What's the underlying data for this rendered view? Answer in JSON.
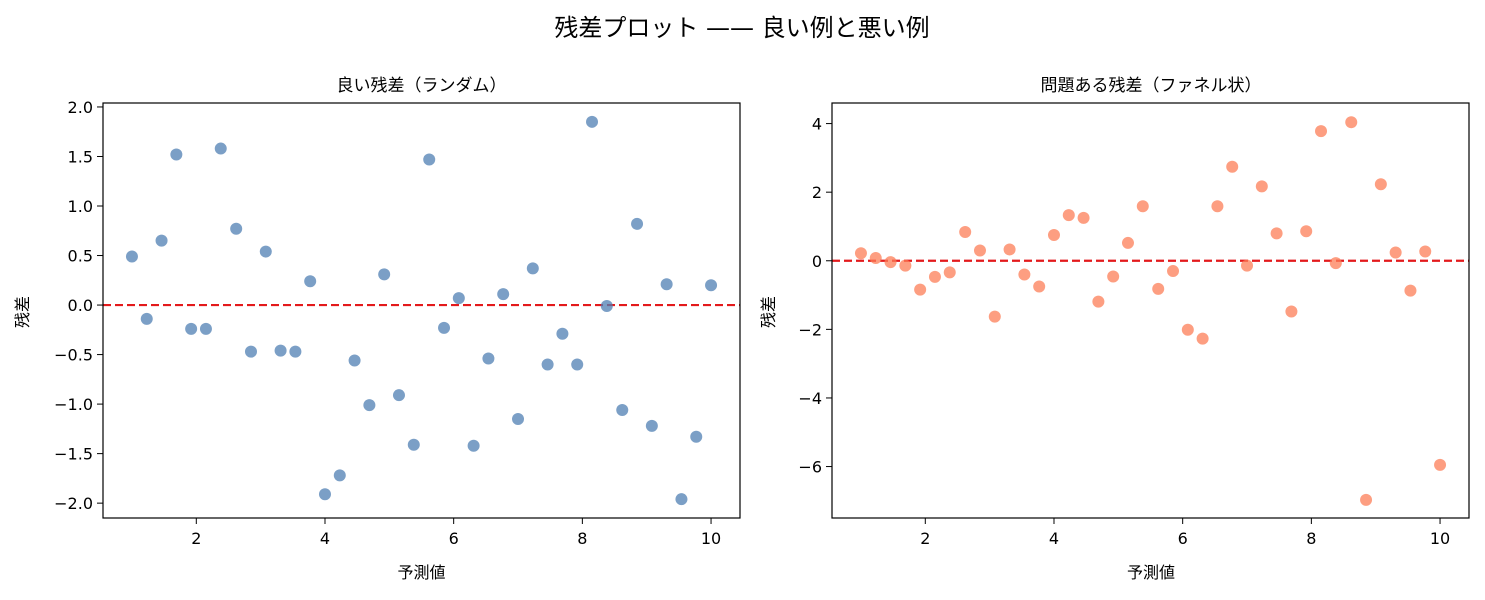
{
  "figure": {
    "suptitle": "残差プロット —— 良い例と悪い例"
  },
  "chart_data": [
    {
      "type": "scatter",
      "title": "良い残差（ランダム）",
      "xlabel": "予測値",
      "ylabel": "残差",
      "xlim": [
        0.55,
        10.45
      ],
      "ylim": [
        -2.15,
        2.04
      ],
      "xticks": [
        2,
        4,
        6,
        8,
        10
      ],
      "yticks": [
        -2.0,
        -1.5,
        -1.0,
        -0.5,
        0.0,
        0.5,
        1.0,
        1.5,
        2.0
      ],
      "ytick_labels": [
        "−2.0",
        "−1.5",
        "−1.0",
        "−0.5",
        "0.0",
        "0.5",
        "1.0",
        "1.5",
        "2.0"
      ],
      "xtick_labels": [
        "2",
        "4",
        "6",
        "8",
        "10"
      ],
      "reference_line": {
        "y": 0,
        "style": "dashed",
        "color": "#e31a1c"
      },
      "grid": false,
      "marker_color": "#4f7fb3",
      "marker_alpha": 0.75,
      "points": [
        {
          "x": 1.0,
          "y": 0.49
        },
        {
          "x": 1.23,
          "y": -0.14
        },
        {
          "x": 1.46,
          "y": 0.65
        },
        {
          "x": 1.69,
          "y": 1.52
        },
        {
          "x": 1.92,
          "y": -0.24
        },
        {
          "x": 2.15,
          "y": -0.24
        },
        {
          "x": 2.38,
          "y": 1.58
        },
        {
          "x": 2.62,
          "y": 0.77
        },
        {
          "x": 2.85,
          "y": -0.47
        },
        {
          "x": 3.08,
          "y": 0.54
        },
        {
          "x": 3.31,
          "y": -0.46
        },
        {
          "x": 3.54,
          "y": -0.47
        },
        {
          "x": 3.77,
          "y": 0.24
        },
        {
          "x": 4.0,
          "y": -1.91
        },
        {
          "x": 4.23,
          "y": -1.72
        },
        {
          "x": 4.46,
          "y": -0.56
        },
        {
          "x": 4.69,
          "y": -1.01
        },
        {
          "x": 4.92,
          "y": 0.31
        },
        {
          "x": 5.15,
          "y": -0.91
        },
        {
          "x": 5.38,
          "y": -1.41
        },
        {
          "x": 5.62,
          "y": 1.47
        },
        {
          "x": 5.85,
          "y": -0.23
        },
        {
          "x": 6.08,
          "y": 0.07
        },
        {
          "x": 6.31,
          "y": -1.42
        },
        {
          "x": 6.54,
          "y": -0.54
        },
        {
          "x": 6.77,
          "y": 0.11
        },
        {
          "x": 7.0,
          "y": -1.15
        },
        {
          "x": 7.23,
          "y": 0.37
        },
        {
          "x": 7.46,
          "y": -0.6
        },
        {
          "x": 7.69,
          "y": -0.29
        },
        {
          "x": 7.92,
          "y": -0.6
        },
        {
          "x": 8.15,
          "y": 1.85
        },
        {
          "x": 8.38,
          "y": -0.01
        },
        {
          "x": 8.62,
          "y": -1.06
        },
        {
          "x": 8.85,
          "y": 0.82
        },
        {
          "x": 9.08,
          "y": -1.22
        },
        {
          "x": 9.31,
          "y": 0.21
        },
        {
          "x": 9.54,
          "y": -1.96
        },
        {
          "x": 9.77,
          "y": -1.33
        },
        {
          "x": 10.0,
          "y": 0.2
        }
      ]
    },
    {
      "type": "scatter",
      "title": "問題ある残差（ファネル状）",
      "xlabel": "予測値",
      "ylabel": "残差",
      "xlim": [
        0.55,
        10.45
      ],
      "ylim": [
        -7.5,
        4.6
      ],
      "xticks": [
        2,
        4,
        6,
        8,
        10
      ],
      "yticks": [
        -6,
        -4,
        -2,
        0,
        2,
        4
      ],
      "ytick_labels": [
        "−6",
        "−4",
        "−2",
        "0",
        "2",
        "4"
      ],
      "xtick_labels": [
        "2",
        "4",
        "6",
        "8",
        "10"
      ],
      "reference_line": {
        "y": 0,
        "style": "dashed",
        "color": "#e31a1c"
      },
      "grid": false,
      "marker_color": "#fc7e57",
      "marker_alpha": 0.75,
      "points": [
        {
          "x": 1.0,
          "y": 0.22
        },
        {
          "x": 1.23,
          "y": 0.08
        },
        {
          "x": 1.46,
          "y": -0.04
        },
        {
          "x": 1.69,
          "y": -0.14
        },
        {
          "x": 1.92,
          "y": -0.84
        },
        {
          "x": 2.15,
          "y": -0.47
        },
        {
          "x": 2.38,
          "y": -0.34
        },
        {
          "x": 2.62,
          "y": 0.84
        },
        {
          "x": 2.85,
          "y": 0.3
        },
        {
          "x": 3.08,
          "y": -1.63
        },
        {
          "x": 3.31,
          "y": 0.33
        },
        {
          "x": 3.54,
          "y": -0.4
        },
        {
          "x": 3.77,
          "y": -0.75
        },
        {
          "x": 4.0,
          "y": 0.75
        },
        {
          "x": 4.23,
          "y": 1.33
        },
        {
          "x": 4.46,
          "y": 1.25
        },
        {
          "x": 4.69,
          "y": -1.19
        },
        {
          "x": 4.92,
          "y": -0.46
        },
        {
          "x": 5.15,
          "y": 0.52
        },
        {
          "x": 5.38,
          "y": 1.59
        },
        {
          "x": 5.62,
          "y": -0.82
        },
        {
          "x": 5.85,
          "y": -0.3
        },
        {
          "x": 6.08,
          "y": -2.01
        },
        {
          "x": 6.31,
          "y": -2.27
        },
        {
          "x": 6.54,
          "y": 1.59
        },
        {
          "x": 6.77,
          "y": 2.74
        },
        {
          "x": 7.0,
          "y": -0.14
        },
        {
          "x": 7.23,
          "y": 2.17
        },
        {
          "x": 7.46,
          "y": 0.8
        },
        {
          "x": 7.69,
          "y": -1.48
        },
        {
          "x": 7.92,
          "y": 0.86
        },
        {
          "x": 8.15,
          "y": 3.78
        },
        {
          "x": 8.38,
          "y": -0.07
        },
        {
          "x": 8.62,
          "y": 4.04
        },
        {
          "x": 8.85,
          "y": -6.97
        },
        {
          "x": 9.08,
          "y": 2.23
        },
        {
          "x": 9.31,
          "y": 0.24
        },
        {
          "x": 9.54,
          "y": -0.87
        },
        {
          "x": 9.77,
          "y": 0.27
        },
        {
          "x": 10.0,
          "y": -5.95
        }
      ]
    }
  ]
}
